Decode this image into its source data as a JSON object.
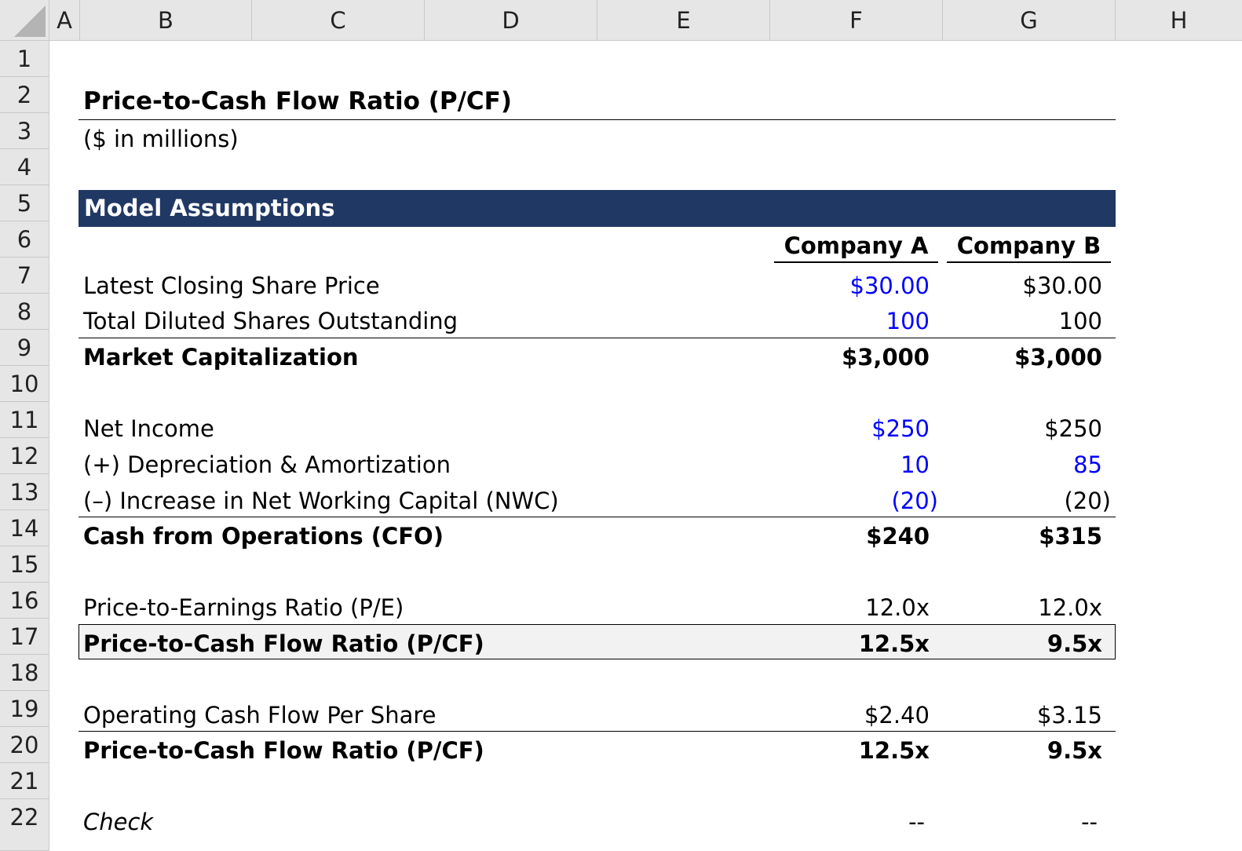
{
  "columns": [
    "A",
    "B",
    "C",
    "D",
    "E",
    "F",
    "G",
    "H"
  ],
  "rows": [
    "1",
    "2",
    "3",
    "4",
    "5",
    "6",
    "7",
    "8",
    "9",
    "10",
    "11",
    "12",
    "13",
    "14",
    "15",
    "16",
    "17",
    "18",
    "19",
    "20",
    "21",
    "22"
  ],
  "title": "Price-to-Cash Flow Ratio (P/CF)",
  "subtitle": "($ in millions)",
  "section_header": "Model Assumptions",
  "company_a": "Company A",
  "company_b": "Company B",
  "lines": {
    "share_price": {
      "label": "Latest Closing Share Price",
      "a": "$30.00",
      "b": "$30.00"
    },
    "shares": {
      "label": "Total Diluted Shares Outstanding",
      "a": "100",
      "b": "100"
    },
    "market_cap": {
      "label": "Market Capitalization",
      "a": "$3,000",
      "b": "$3,000"
    },
    "net_income": {
      "label": "Net Income",
      "a": "$250",
      "b": "$250"
    },
    "da": {
      "label": "(+) Depreciation & Amortization",
      "a": "10",
      "b": "85"
    },
    "nwc": {
      "label": "(–) Increase in Net Working Capital (NWC)",
      "a": "(20)",
      "b": "(20)"
    },
    "cfo": {
      "label": "Cash from Operations (CFO)",
      "a": "$240",
      "b": "$315"
    },
    "pe": {
      "label": "Price-to-Earnings Ratio (P/E)",
      "a": "12.0x",
      "b": "12.0x"
    },
    "pcf1": {
      "label": "Price-to-Cash Flow Ratio (P/CF)",
      "a": "12.5x",
      "b": "9.5x"
    },
    "ocfps": {
      "label": "Operating Cash Flow Per Share",
      "a": "$2.40",
      "b": "$3.15"
    },
    "pcf2": {
      "label": "Price-to-Cash Flow Ratio (P/CF)",
      "a": "12.5x",
      "b": "9.5x"
    },
    "check": {
      "label": "Check",
      "a": "--",
      "b": "--"
    }
  },
  "colors": {
    "banner": "#203864",
    "input_blue": "#0000ff",
    "header_gray": "#e6e6e6",
    "highlight": "#f2f2f2"
  }
}
